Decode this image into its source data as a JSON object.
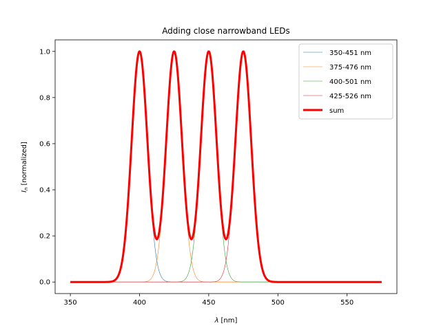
{
  "chart_data": {
    "type": "line",
    "title": "Adding close narrowband LEDs",
    "xlabel_symbol": "λ",
    "xlabel_unit": "[nm]",
    "ylabel_symbol": "I",
    "ylabel_subscript": "n",
    "ylabel_unit": "[normalized]",
    "xlim": [
      339,
      586
    ],
    "ylim": [
      -0.05,
      1.05
    ],
    "xticks": [
      350,
      400,
      450,
      500,
      550
    ],
    "yticks": [
      0.0,
      0.2,
      0.4,
      0.6,
      0.8,
      1.0
    ],
    "xtick_labels": [
      "350",
      "400",
      "450",
      "500",
      "550"
    ],
    "ytick_labels": [
      "0.0",
      "0.2",
      "0.4",
      "0.6",
      "0.8",
      "1.0"
    ],
    "grid": false,
    "legend_position": "top-right",
    "x_range": [
      350,
      575
    ],
    "series": [
      {
        "name": "350-451 nm",
        "peak": 400,
        "fwhm": 13.5,
        "color": "#1f77b4",
        "line_width": 0.6
      },
      {
        "name": "375-476 nm",
        "peak": 425,
        "fwhm": 13.5,
        "color": "#ff7f0e",
        "line_width": 0.6
      },
      {
        "name": "400-501 nm",
        "peak": 450,
        "fwhm": 13.5,
        "color": "#2ca02c",
        "line_width": 0.6
      },
      {
        "name": "425-526 nm",
        "peak": 475,
        "fwhm": 13.5,
        "color": "#d62728",
        "line_width": 0.6
      },
      {
        "name": "sum",
        "sum_of_series": true,
        "color": "#ff0000",
        "line_width": 3
      }
    ]
  }
}
